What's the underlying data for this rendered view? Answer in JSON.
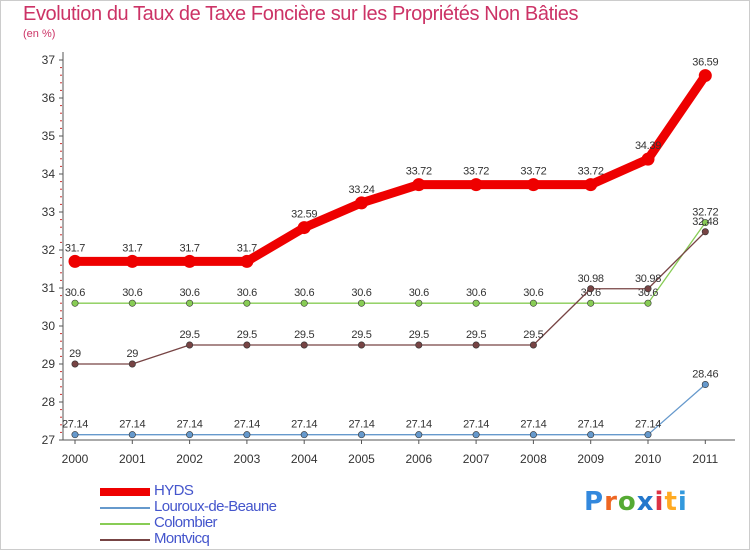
{
  "chart_data": {
    "type": "line",
    "title": "Evolution du Taux de Taxe Foncière sur les Propriétés Non Bâties",
    "subtitle": "(en %)",
    "xlabel": "",
    "ylabel": "(en %)",
    "x": [
      "2000",
      "2001",
      "2002",
      "2003",
      "2004",
      "2005",
      "2006",
      "2007",
      "2008",
      "2009",
      "2010",
      "2011"
    ],
    "ylim": [
      27,
      37
    ],
    "yticks": [
      "27",
      "28",
      "29",
      "30",
      "31",
      "32",
      "33",
      "34",
      "35",
      "36",
      "37"
    ],
    "grid": false,
    "legend_position": "bottom-left",
    "series": [
      {
        "name": "HYDS",
        "color": "#ee0000",
        "values": [
          31.7,
          31.7,
          31.7,
          31.7,
          32.59,
          33.24,
          33.72,
          33.72,
          33.72,
          33.72,
          34.39,
          36.59
        ],
        "labels": [
          "31.7",
          "31.7",
          "31.7",
          "31.7",
          "32.59",
          "33.24",
          "33.72",
          "33.72",
          "33.72",
          "33.72",
          "34.39",
          "36.59"
        ]
      },
      {
        "name": "Louroux-de-Beaune",
        "color": "#6699cc",
        "values": [
          27.14,
          27.14,
          27.14,
          27.14,
          27.14,
          27.14,
          27.14,
          27.14,
          27.14,
          27.14,
          27.14,
          28.46
        ],
        "labels": [
          "27.14",
          "27.14",
          "27.14",
          "27.14",
          "27.14",
          "27.14",
          "27.14",
          "27.14",
          "27.14",
          "27.14",
          "27.14",
          "28.46"
        ]
      },
      {
        "name": "Colombier",
        "color": "#88cc55",
        "values": [
          30.6,
          30.6,
          30.6,
          30.6,
          30.6,
          30.6,
          30.6,
          30.6,
          30.6,
          30.6,
          30.6,
          32.72
        ],
        "labels": [
          "30.6",
          "30.6",
          "30.6",
          "30.6",
          "30.6",
          "30.6",
          "30.6",
          "30.6",
          "30.6",
          "30.6",
          "30.6",
          "32.72"
        ]
      },
      {
        "name": "Montvicq",
        "color": "#774444",
        "values": [
          29,
          29,
          29.5,
          29.5,
          29.5,
          29.5,
          29.5,
          29.5,
          29.5,
          30.98,
          30.98,
          32.48
        ],
        "labels": [
          "29",
          "29",
          "29.5",
          "29.5",
          "29.5",
          "29.5",
          "29.5",
          "29.5",
          "29.5",
          "30.98",
          "30.98",
          "32.48"
        ]
      }
    ]
  },
  "logo": {
    "text": "Proxiti",
    "colors": [
      "#3388dd",
      "#ee6622",
      "#55aa33",
      "#2277cc",
      "#dd3344",
      "#ffaa22",
      "#3399dd"
    ]
  }
}
